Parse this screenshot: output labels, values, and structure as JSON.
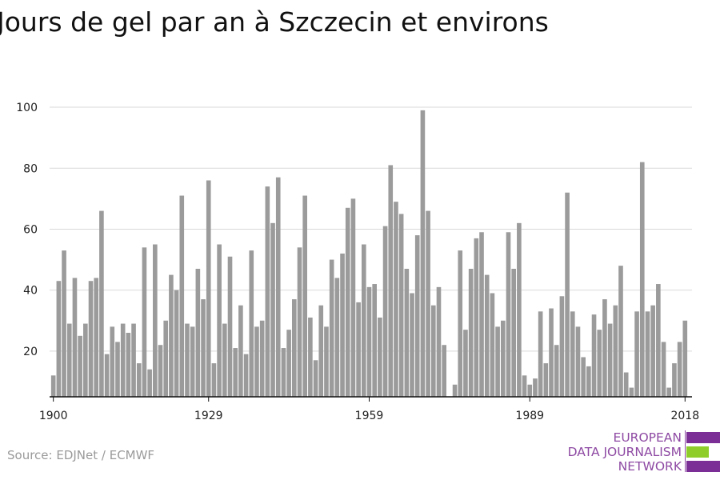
{
  "title": "Jours de gel par an à Szczecin et environs",
  "source": "Source: EDJNet / ECMWF",
  "logo": {
    "lines": [
      "EUROPEAN",
      "DATA JOURNALISM",
      "NETWORK"
    ],
    "colors": {
      "purple": "#7b2f96",
      "green": "#8fce2a"
    }
  },
  "chart_data": {
    "type": "bar",
    "title": "Jours de gel par an à Szczecin et environs",
    "xlabel": "",
    "ylabel": "",
    "bar_color": "#9b9b9b",
    "grid": true,
    "x_start": 1900,
    "x_ticks": [
      1900,
      1929,
      1959,
      1989,
      2018
    ],
    "y_ticks": [
      20,
      40,
      60,
      80,
      100
    ],
    "ylim": [
      5,
      105
    ],
    "xlim": [
      1899.3,
      2019.3
    ],
    "values": [
      12,
      43,
      53,
      29,
      44,
      25,
      29,
      43,
      44,
      66,
      19,
      28,
      23,
      29,
      26,
      29,
      16,
      54,
      14,
      55,
      22,
      30,
      45,
      40,
      71,
      29,
      28,
      47,
      37,
      76,
      16,
      55,
      29,
      51,
      21,
      35,
      19,
      53,
      28,
      30,
      74,
      62,
      77,
      21,
      27,
      37,
      54,
      71,
      31,
      17,
      35,
      28,
      50,
      44,
      52,
      67,
      70,
      36,
      55,
      41,
      42,
      31,
      61,
      81,
      69,
      65,
      47,
      39,
      58,
      99,
      66,
      35,
      41,
      22,
      5,
      9,
      53,
      27,
      47,
      57,
      59,
      45,
      39,
      28,
      30,
      59,
      47,
      62,
      12,
      9,
      11,
      33,
      16,
      34,
      22,
      38,
      72,
      33,
      28,
      18,
      15,
      32,
      27,
      37,
      29,
      35,
      48,
      13,
      8,
      33,
      82,
      33,
      35,
      42,
      23,
      8,
      16,
      23,
      30
    ]
  }
}
